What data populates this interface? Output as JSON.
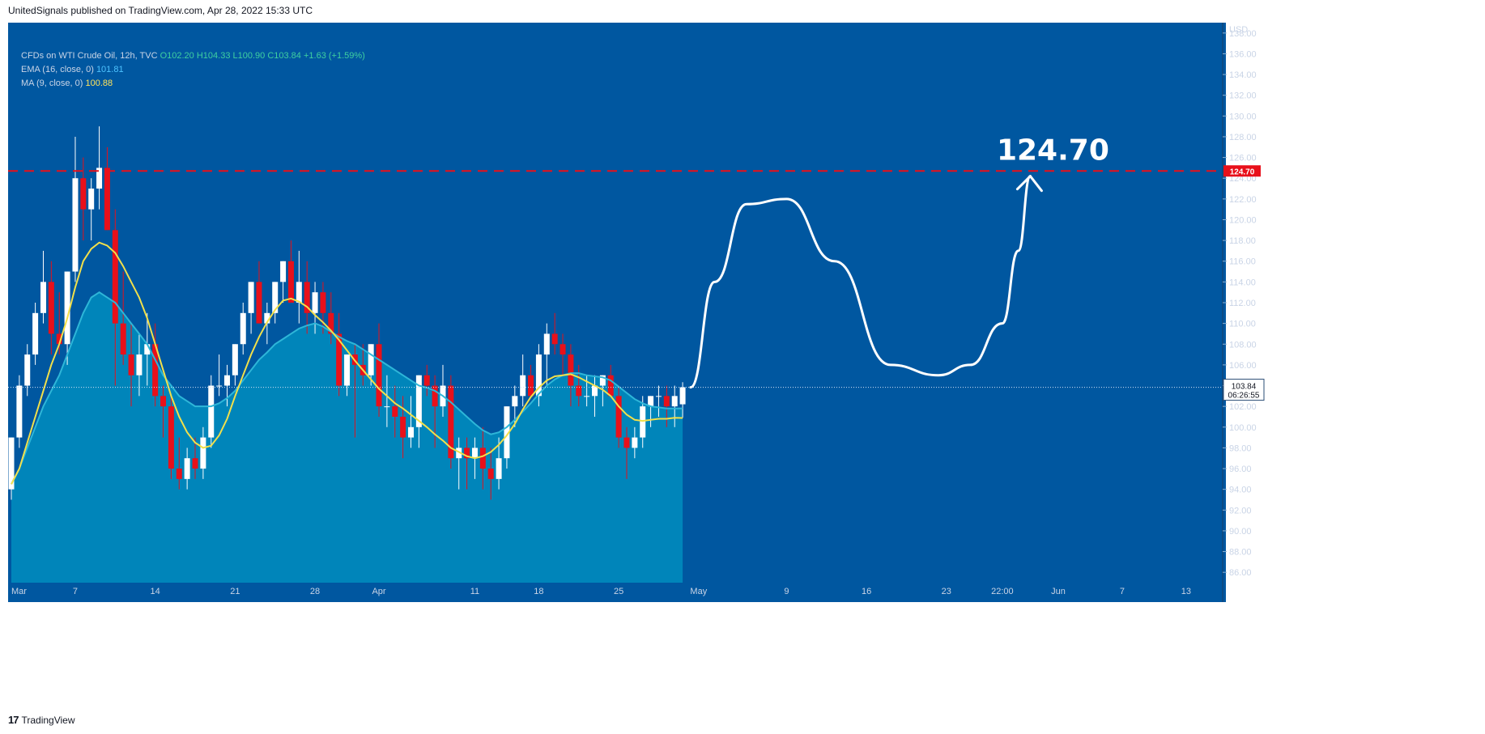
{
  "header": {
    "publish_line": "UnitedSignals published on TradingView.com, Apr 28, 2022 15:33 UTC"
  },
  "legend": {
    "symbol": "CFDs on WTI Crude Oil, 12h, TVC",
    "open": "O102.20",
    "high": "H104.33",
    "low": "L100.90",
    "close": "C103.84",
    "change": "+1.63 (+1.59%)",
    "ema_label": "EMA (16, close, 0)",
    "ema_value": "101.81",
    "ma_label": "MA (9, close, 0)",
    "ma_value": "100.88"
  },
  "footer": {
    "brand": "TradingView"
  },
  "annotation": {
    "target_text": "124.70"
  },
  "colors": {
    "background": "#0057A0",
    "area_fill": "#0085BA",
    "ema_line": "#2EB6D8",
    "ma_line": "#F2E04A",
    "up_candle": "#FFFFFF",
    "down_candle": "#E8101A",
    "target_line": "#E8101A",
    "projection": "#FFFFFF"
  },
  "chart_data": {
    "type": "candlestick",
    "title": "CFDs on WTI Crude Oil, 12h, TVC",
    "currency": "USD",
    "ylim": [
      85,
      139
    ],
    "y_ticks": [
      86,
      88,
      90,
      92,
      94,
      96,
      98,
      100,
      102,
      104,
      106,
      108,
      110,
      112,
      114,
      116,
      118,
      120,
      122,
      124,
      126,
      128,
      130,
      132,
      134,
      136,
      138
    ],
    "x_ticks": [
      {
        "label": "Mar",
        "bar": 0
      },
      {
        "label": "7",
        "bar": 8
      },
      {
        "label": "14",
        "bar": 18
      },
      {
        "label": "21",
        "bar": 28
      },
      {
        "label": "28",
        "bar": 38
      },
      {
        "label": "Apr",
        "bar": 46
      },
      {
        "label": "11",
        "bar": 58
      },
      {
        "label": "18",
        "bar": 66
      },
      {
        "label": "25",
        "bar": 76
      },
      {
        "label": "May",
        "bar": 86
      },
      {
        "label": "9",
        "bar": 97
      },
      {
        "label": "16",
        "bar": 107
      },
      {
        "label": "23",
        "bar": 117
      },
      {
        "label": "22:00",
        "bar": 124
      },
      {
        "label": "Jun",
        "bar": 131
      },
      {
        "label": "7",
        "bar": 139
      },
      {
        "label": "13",
        "bar": 147
      }
    ],
    "total_bars": 149,
    "candles": [
      [
        94,
        99,
        93,
        99
      ],
      [
        99,
        105,
        98,
        104
      ],
      [
        104,
        108,
        103,
        107
      ],
      [
        107,
        112,
        106,
        111
      ],
      [
        111,
        117,
        110,
        114
      ],
      [
        114,
        116,
        107,
        109
      ],
      [
        109,
        113,
        107,
        108
      ],
      [
        108,
        115,
        106,
        115
      ],
      [
        115,
        128,
        114,
        124
      ],
      [
        124,
        126,
        118,
        121
      ],
      [
        121,
        124,
        118,
        123
      ],
      [
        123,
        129,
        121,
        125
      ],
      [
        125,
        127,
        119,
        119
      ],
      [
        119,
        121,
        104,
        110
      ],
      [
        110,
        115,
        106,
        107
      ],
      [
        107,
        110,
        102,
        105
      ],
      [
        105,
        109,
        103,
        107
      ],
      [
        107,
        111,
        104,
        108
      ],
      [
        108,
        110,
        102,
        103
      ],
      [
        103,
        104,
        99,
        102
      ],
      [
        102,
        103,
        95,
        96
      ],
      [
        96,
        99,
        94,
        95
      ],
      [
        95,
        98,
        94,
        97
      ],
      [
        97,
        99,
        95,
        96
      ],
      [
        96,
        100,
        95,
        99
      ],
      [
        99,
        105,
        98,
        104
      ],
      [
        104,
        107,
        103,
        104
      ],
      [
        104,
        106,
        102,
        105
      ],
      [
        105,
        108,
        104,
        108
      ],
      [
        108,
        112,
        107,
        111
      ],
      [
        111,
        114,
        109,
        114
      ],
      [
        114,
        116,
        110,
        110
      ],
      [
        110,
        112,
        108,
        111
      ],
      [
        111,
        114,
        110,
        114
      ],
      [
        114,
        116,
        112,
        116
      ],
      [
        116,
        118,
        112,
        112
      ],
      [
        112,
        117,
        110,
        114
      ],
      [
        114,
        116,
        109,
        111
      ],
      [
        111,
        114,
        109,
        113
      ],
      [
        113,
        114,
        109,
        111
      ],
      [
        111,
        113,
        108,
        109
      ],
      [
        109,
        111,
        103,
        104
      ],
      [
        104,
        107,
        103,
        107
      ],
      [
        107,
        108,
        99,
        106
      ],
      [
        106,
        108,
        104,
        105
      ],
      [
        105,
        108,
        104,
        108
      ],
      [
        108,
        110,
        101,
        102
      ],
      [
        102,
        105,
        100,
        102
      ],
      [
        102,
        104,
        99,
        101
      ],
      [
        101,
        103,
        97,
        99
      ],
      [
        99,
        103,
        98,
        100
      ],
      [
        100,
        105,
        98,
        105
      ],
      [
        105,
        106,
        103,
        104
      ],
      [
        104,
        105,
        98,
        102
      ],
      [
        102,
        106,
        101,
        104
      ],
      [
        104,
        105,
        96,
        97
      ],
      [
        97,
        99,
        94,
        98
      ],
      [
        98,
        99,
        94,
        97
      ],
      [
        97,
        99,
        95,
        98
      ],
      [
        98,
        100,
        94,
        96
      ],
      [
        96,
        98,
        93,
        95
      ],
      [
        95,
        99,
        94,
        97
      ],
      [
        97,
        102,
        96,
        102
      ],
      [
        102,
        104,
        100,
        103
      ],
      [
        103,
        107,
        102,
        105
      ],
      [
        105,
        106,
        103,
        103
      ],
      [
        103,
        108,
        102,
        107
      ],
      [
        107,
        110,
        104,
        109
      ],
      [
        109,
        111,
        107,
        108
      ],
      [
        108,
        109,
        105,
        107
      ],
      [
        107,
        108,
        102,
        104
      ],
      [
        104,
        106,
        102,
        103
      ],
      [
        103,
        105,
        102,
        103
      ],
      [
        103,
        105,
        101,
        104
      ],
      [
        104,
        105,
        102,
        105
      ],
      [
        105,
        106,
        103,
        103
      ],
      [
        103,
        104,
        98,
        99
      ],
      [
        99,
        100,
        95,
        98
      ],
      [
        98,
        100,
        97,
        99
      ],
      [
        99,
        103,
        98,
        102
      ],
      [
        102,
        103,
        100,
        103
      ],
      [
        103,
        104,
        101,
        103
      ],
      [
        103,
        104,
        100,
        102
      ],
      [
        102,
        104,
        100,
        103
      ],
      [
        102.2,
        104.33,
        100.9,
        103.84
      ]
    ],
    "ema": [
      94.5,
      96,
      98,
      100,
      102,
      103.5,
      105,
      107,
      109,
      111,
      112.5,
      113,
      112.5,
      112,
      111,
      110,
      109,
      108,
      106.5,
      105,
      104,
      103,
      102.5,
      102,
      102,
      102,
      102.3,
      102.8,
      103.5,
      104.5,
      105.5,
      106.5,
      107.2,
      108,
      108.5,
      109,
      109.5,
      109.8,
      110,
      109.7,
      109.2,
      108.7,
      108.3,
      108,
      107.5,
      107,
      106.5,
      106,
      105.5,
      105,
      104.5,
      104,
      103.8,
      103.5,
      103,
      102.4,
      101.7,
      101,
      100.3,
      99.7,
      99.3,
      99.5,
      100,
      100.7,
      101.5,
      102.3,
      103.2,
      104,
      104.6,
      105,
      105.2,
      105.2,
      105,
      104.9,
      104.8,
      104.5,
      103.9,
      103.3,
      102.7,
      102.3,
      102,
      101.9,
      101.8,
      101.8,
      101.81
    ],
    "ma": [
      94.5,
      96,
      98.5,
      101,
      103.5,
      106,
      108,
      110.5,
      113.5,
      116,
      117.2,
      117.8,
      117.5,
      116.8,
      115.5,
      114,
      112.5,
      110.5,
      108,
      105.5,
      103,
      101,
      99.5,
      98.5,
      98,
      98.2,
      99.2,
      100.8,
      103,
      105,
      107,
      108.7,
      110.1,
      111.3,
      112.2,
      112.4,
      112.1,
      111.6,
      110.8,
      110.1,
      109.3,
      108.4,
      107.4,
      106.4,
      105.5,
      104.6,
      103.7,
      103,
      102.3,
      101.8,
      101.2,
      100.6,
      100,
      99.3,
      98.7,
      98,
      97.6,
      97.2,
      97,
      97.2,
      97.6,
      98.3,
      99.2,
      100.3,
      101.7,
      102.9,
      103.8,
      104.5,
      104.9,
      105,
      105.1,
      104.8,
      104.4,
      104,
      103.6,
      103,
      102,
      101.2,
      100.7,
      100.6,
      100.7,
      100.8,
      100.8,
      100.9,
      100.88
    ],
    "target_level": 124.7,
    "current_price": 103.84,
    "countdown": "06:26:55",
    "projection_path": [
      [
        85,
        103.84
      ],
      [
        88,
        114
      ],
      [
        92,
        121.5
      ],
      [
        97,
        122
      ],
      [
        103,
        116
      ],
      [
        110,
        106
      ],
      [
        116,
        105
      ],
      [
        120,
        106
      ],
      [
        124,
        110
      ],
      [
        126,
        117
      ],
      [
        127.5,
        124.2
      ]
    ]
  }
}
